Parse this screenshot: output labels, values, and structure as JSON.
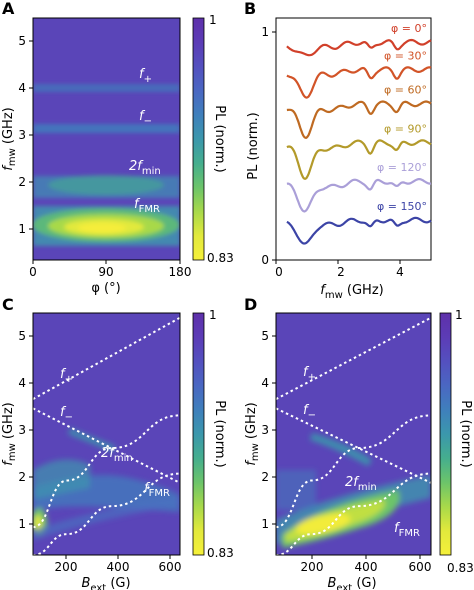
{
  "colors": {
    "colormap": [
      "#f5f03a",
      "#e2e93c",
      "#a8d94a",
      "#6cc46a",
      "#45ae8e",
      "#3b97ac",
      "#3f7fbc",
      "#4a67c2",
      "#5450bf",
      "#5c3cb6",
      "#5e30aa"
    ],
    "background": "#5a45b8",
    "mode_line": "#ffffff"
  },
  "panels": {
    "A": {
      "label": "A",
      "ylabel_f": "f",
      "ylabel_sub": "mw",
      "ylabel_unit": " (GHz)",
      "xlabel": "φ (°)",
      "annotations": {
        "f_plus": "f",
        "f_plus_sub": "+",
        "f_minus": "f",
        "f_minus_sub": "−",
        "f2min": "2f",
        "f2min_sub": "min",
        "ffmr": "f",
        "ffmr_sub": "FMR"
      },
      "colorbar": {
        "top": "1",
        "bottom": "0.83",
        "label": "PL (norm.)"
      }
    },
    "B": {
      "label": "B",
      "ylabel": "PL (norm.)",
      "xlabel_f": "f",
      "xlabel_sub": "mw",
      "xlabel_unit": " (GHz)"
    },
    "C": {
      "label": "C",
      "ylabel_f": "f",
      "ylabel_sub": "mw",
      "ylabel_unit": " (GHz)",
      "xlabel_b": "B",
      "xlabel_sub": "ext",
      "xlabel_unit": " (G)",
      "annotations": {
        "f_plus": "f",
        "f_plus_sub": "+",
        "f_minus": "f",
        "f_minus_sub": "−",
        "f2min": "2f",
        "f2min_sub": "min",
        "ffmr": "f",
        "ffmr_sub": "FMR"
      },
      "colorbar": {
        "top": "1",
        "bottom": "0.83",
        "label": "PL (norm.)"
      }
    },
    "D": {
      "label": "D",
      "ylabel_f": "f",
      "ylabel_sub": "mw",
      "ylabel_unit": " (GHz)",
      "xlabel_b": "B",
      "xlabel_sub": "ext",
      "xlabel_unit": " (G)",
      "annotations": {
        "f_plus": "f",
        "f_plus_sub": "+",
        "f_minus": "f",
        "f_minus_sub": "−",
        "f2min": "2f",
        "f2min_sub": "min",
        "ffmr": "f",
        "ffmr_sub": "FMR"
      },
      "colorbar": {
        "top": "1",
        "bottom": "0.83",
        "label": "PL (norm.)"
      }
    }
  },
  "chart_data": [
    {
      "panel": "A",
      "type": "heatmap",
      "x_label": "φ (°)",
      "y_label": "fmw (GHz)",
      "xlim": [
        0,
        180
      ],
      "ylim": [
        0.3,
        5.5
      ],
      "xticks": [
        0,
        90,
        180
      ],
      "yticks": [
        1,
        2,
        3,
        4,
        5
      ],
      "colorbar_range": [
        0.83,
        1
      ],
      "features": [
        {
          "name": "f+",
          "type": "horizontal_line",
          "y": 3.9
        },
        {
          "name": "f−",
          "type": "horizontal_line",
          "y": 3.05
        },
        {
          "name": "2fmin",
          "type": "broad_band",
          "y": 1.7
        },
        {
          "name": "fFMR",
          "type": "strong_band",
          "y": 0.95,
          "peak_x": 90
        }
      ]
    },
    {
      "panel": "B",
      "type": "line",
      "x_label": "fmw (GHz)",
      "y_label": "PL (norm.)",
      "xlim": [
        0,
        5
      ],
      "xticks": [
        0,
        2,
        4
      ],
      "yticks": [
        0,
        1
      ],
      "series": [
        {
          "name": "φ = 0°",
          "color": "#d1402a",
          "offset": 0.94,
          "dips": [
            [
              0.95,
              0.05,
              0.25
            ],
            [
              1.8,
              0.02,
              0.35
            ],
            [
              3.05,
              0.03,
              0.1
            ],
            [
              3.9,
              0.025,
              0.1
            ]
          ]
        },
        {
          "name": "φ = 30°",
          "color": "#d25428",
          "offset": 0.82,
          "dips": [
            [
              0.95,
              0.11,
              0.22
            ],
            [
              1.8,
              0.02,
              0.35
            ],
            [
              3.05,
              0.035,
              0.1
            ],
            [
              3.9,
              0.03,
              0.1
            ]
          ]
        },
        {
          "name": "φ = 60°",
          "color": "#bf6a22",
          "offset": 0.67,
          "dips": [
            [
              0.95,
              0.13,
              0.22
            ],
            [
              1.8,
              0.025,
              0.35
            ],
            [
              3.05,
              0.035,
              0.1
            ],
            [
              3.9,
              0.03,
              0.1
            ]
          ]
        },
        {
          "name": "φ = 90°",
          "color": "#b39a2a",
          "offset": 0.5,
          "dips": [
            [
              0.95,
              0.14,
              0.22
            ],
            [
              1.8,
              0.025,
              0.35
            ],
            [
              3.05,
              0.04,
              0.1
            ],
            [
              3.9,
              0.035,
              0.1
            ]
          ]
        },
        {
          "name": "φ = 120°",
          "color": "#aa9fd8",
          "offset": 0.33,
          "dips": [
            [
              0.95,
              0.12,
              0.22
            ],
            [
              1.8,
              0.025,
              0.35
            ],
            [
              3.05,
              0.035,
              0.1
            ],
            [
              3.9,
              0.03,
              0.1
            ]
          ]
        },
        {
          "name": "φ = 150°",
          "color": "#3c44a6",
          "offset": 0.16,
          "dips": [
            [
              0.95,
              0.1,
              0.22
            ],
            [
              1.8,
              0.02,
              0.35
            ],
            [
              3.05,
              0.035,
              0.1
            ],
            [
              3.9,
              0.03,
              0.1
            ]
          ]
        }
      ]
    },
    {
      "panel": "C",
      "type": "heatmap",
      "x_label": "Bext (G)",
      "y_label": "fmw (GHz)",
      "xlim": [
        50,
        700
      ],
      "ylim": [
        0.3,
        5.5
      ],
      "xticks": [
        200,
        400,
        600
      ],
      "yticks": [
        1,
        2,
        3,
        4,
        5
      ],
      "colorbar_range": [
        0.83,
        1
      ],
      "curves": [
        {
          "name": "f+",
          "points": [
            [
              50,
              3.65
            ],
            [
              700,
              5.4
            ]
          ]
        },
        {
          "name": "f−",
          "points": [
            [
              50,
              3.45
            ],
            [
              700,
              1.85
            ]
          ]
        },
        {
          "name": "2fmin",
          "points": [
            [
              50,
              0.9
            ],
            [
              200,
              1.9
            ],
            [
              400,
              2.6
            ],
            [
              700,
              3.3
            ]
          ]
        },
        {
          "name": "fFMR",
          "points": [
            [
              50,
              0.3
            ],
            [
              200,
              0.75
            ],
            [
              400,
              1.35
            ],
            [
              700,
              2.05
            ]
          ]
        }
      ]
    },
    {
      "panel": "D",
      "type": "heatmap",
      "x_label": "Bext (G)",
      "y_label": "fmw (GHz)",
      "xlim": [
        50,
        700
      ],
      "ylim": [
        0.3,
        5.5
      ],
      "xticks": [
        200,
        400,
        600
      ],
      "yticks": [
        1,
        2,
        3,
        4,
        5
      ],
      "colorbar_range": [
        0.83,
        1
      ],
      "curves": [
        {
          "name": "f+",
          "points": [
            [
              50,
              3.65
            ],
            [
              700,
              5.4
            ]
          ]
        },
        {
          "name": "f−",
          "points": [
            [
              50,
              3.45
            ],
            [
              700,
              1.85
            ]
          ]
        },
        {
          "name": "2fmin",
          "points": [
            [
              50,
              0.9
            ],
            [
              200,
              1.9
            ],
            [
              400,
              2.6
            ],
            [
              700,
              3.3
            ]
          ]
        },
        {
          "name": "fFMR",
          "points": [
            [
              50,
              0.3
            ],
            [
              200,
              0.75
            ],
            [
              400,
              1.35
            ],
            [
              700,
              2.05
            ]
          ]
        }
      ]
    }
  ]
}
